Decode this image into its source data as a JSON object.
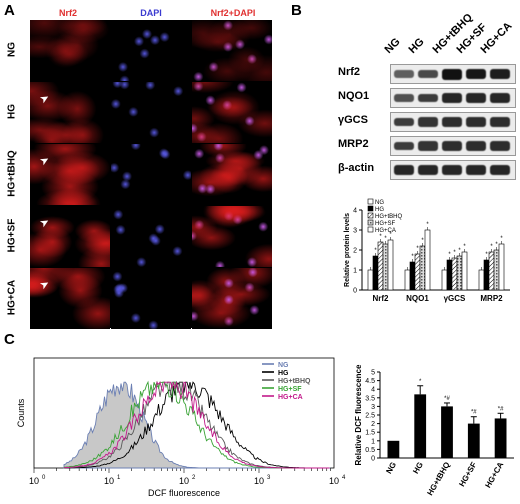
{
  "panelA": {
    "label": "A",
    "columns": [
      "Nrf2",
      "DAPI",
      "Nrf2+DAPI"
    ],
    "rows": [
      "NG",
      "HG",
      "HG+tBHQ",
      "HG+SF",
      "HG+CA"
    ]
  },
  "panelB": {
    "label": "B",
    "lanes": [
      "NG",
      "HG",
      "HG+tBHQ",
      "HG+SF",
      "HG+CA"
    ],
    "blots": [
      {
        "name": "Nrf2",
        "intensity": [
          0.45,
          0.6,
          1.0,
          0.95,
          0.9
        ]
      },
      {
        "name": "NQO1",
        "intensity": [
          0.55,
          0.7,
          0.85,
          0.85,
          0.85
        ]
      },
      {
        "name": "γGCS",
        "intensity": [
          0.7,
          0.75,
          0.8,
          0.8,
          0.8
        ]
      },
      {
        "name": "MRP2",
        "intensity": [
          0.7,
          0.75,
          0.8,
          0.8,
          0.8
        ]
      },
      {
        "name": "β-actin",
        "intensity": [
          0.85,
          0.85,
          0.85,
          0.85,
          0.85
        ]
      }
    ]
  },
  "chart_data": [
    {
      "type": "bar",
      "title": "",
      "xlabel": "",
      "ylabel": "Relative protein levels",
      "ylim": [
        0,
        4
      ],
      "yticks": [
        "0",
        "1",
        "2",
        "3",
        "4"
      ],
      "categories": [
        "Nrf2",
        "NQO1",
        "γGCS",
        "MRP2"
      ],
      "legend_position": "top-left",
      "series": [
        {
          "name": "NG",
          "values": [
            1.0,
            1.0,
            1.0,
            1.0
          ],
          "marks": [
            "",
            "",
            "",
            ""
          ]
        },
        {
          "name": "HG",
          "values": [
            1.7,
            1.4,
            1.5,
            1.5
          ],
          "marks": [
            "*",
            "*",
            "*",
            "*"
          ]
        },
        {
          "name": "HG+tBHQ",
          "values": [
            2.4,
            1.8,
            1.6,
            1.9
          ],
          "marks": [
            "*",
            "*",
            "*",
            "*"
          ]
        },
        {
          "name": "HG+SF",
          "values": [
            2.3,
            2.2,
            1.7,
            2.0
          ],
          "marks": [
            "*",
            "*",
            "*",
            "*"
          ]
        },
        {
          "name": "HG+CA",
          "values": [
            2.5,
            3.0,
            1.9,
            2.3
          ],
          "marks": [
            "*",
            "*",
            "*",
            "*"
          ]
        }
      ],
      "colors": {
        "NG": "#ffffff",
        "HG": "#000000",
        "HG+tBHQ": "#8a8a8a",
        "HG+SF": "#cfcfcf",
        "HG+CA": "#ffffff"
      }
    },
    {
      "type": "line",
      "title": "",
      "xlabel": "DCF fluorescence",
      "ylabel": "Counts",
      "x_scale": "log",
      "xlim": [
        1,
        10000
      ],
      "xtick_labels": [
        "10",
        "10",
        "10",
        "10",
        "10"
      ],
      "xtick_exponents": [
        "0",
        "1",
        "2",
        "3",
        "4"
      ],
      "legend_position": "top-right",
      "series": [
        {
          "name": "NG",
          "color": "#6b7fb3",
          "peak_log10x": 1.15,
          "spread": 0.42,
          "filled": true
        },
        {
          "name": "HG",
          "color": "#000000",
          "peak_log10x": 2.05,
          "spread": 0.62,
          "filled": false
        },
        {
          "name": "HG+tBHQ",
          "color": "#5a5a5a",
          "peak_log10x": 1.85,
          "spread": 0.6,
          "filled": false
        },
        {
          "name": "HG+SF",
          "color": "#3aa336",
          "peak_log10x": 1.7,
          "spread": 0.6,
          "filled": false
        },
        {
          "name": "HG+CA",
          "color": "#c21a8a",
          "peak_log10x": 1.8,
          "spread": 0.6,
          "filled": false
        }
      ]
    },
    {
      "type": "bar",
      "title": "",
      "xlabel": "",
      "ylabel": "Relative DCF fluorescence",
      "ylim": [
        0,
        5
      ],
      "yticks": [
        "0",
        "0.5",
        "1",
        "1.5",
        "2",
        "2.5",
        "3",
        "3.5",
        "4",
        "4.5",
        "5"
      ],
      "categories": [
        "NG",
        "HG",
        "HG+tBHQ",
        "HG+SF",
        "HG+CA"
      ],
      "values": [
        1.0,
        3.7,
        3.0,
        2.0,
        2.3
      ],
      "errors": [
        0.0,
        0.5,
        0.2,
        0.4,
        0.3
      ],
      "marks": [
        "",
        "*",
        "*#",
        "*#",
        "*#"
      ]
    }
  ],
  "panelC": {
    "label": "C"
  }
}
